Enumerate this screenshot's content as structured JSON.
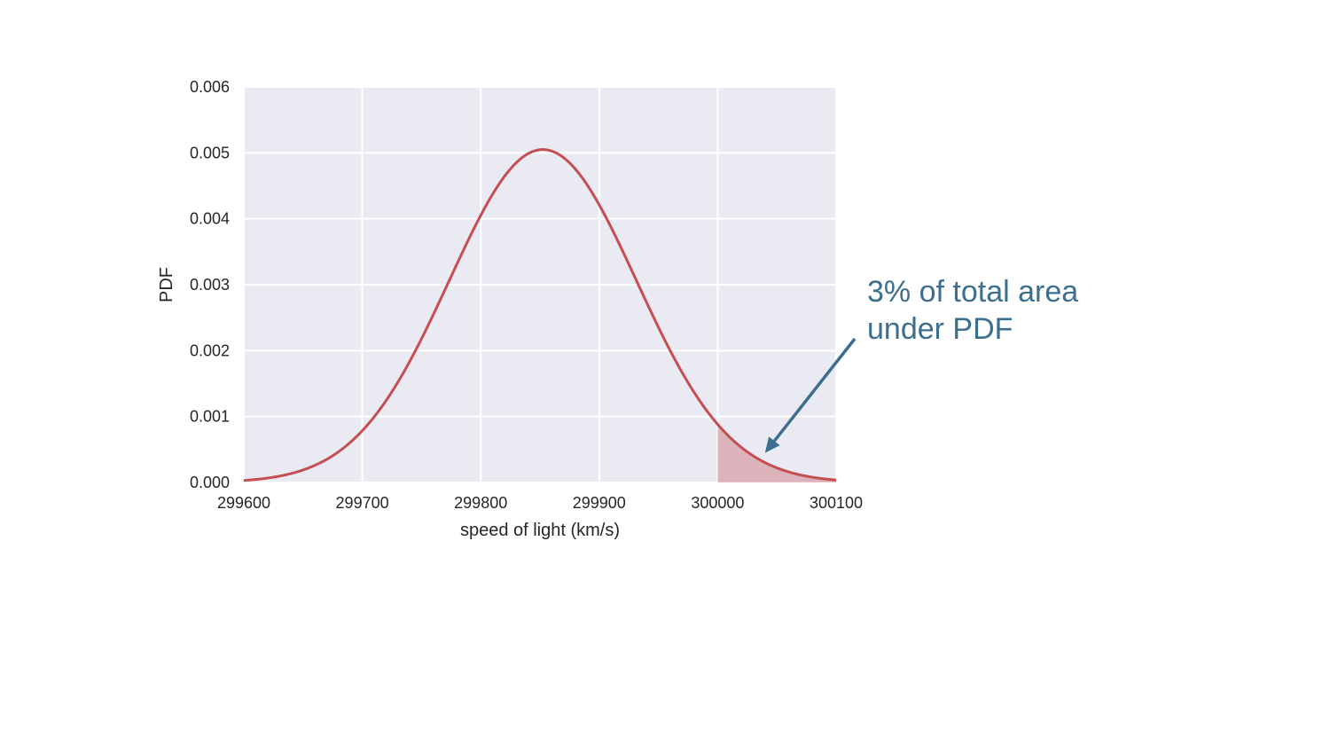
{
  "chart_data": {
    "type": "line",
    "title": "",
    "xlabel": "speed of light (km/s)",
    "ylabel": "PDF",
    "xlim": [
      299600,
      300100
    ],
    "ylim": [
      0,
      0.006
    ],
    "grid": true,
    "x_ticks": [
      299600,
      299700,
      299800,
      299900,
      300000,
      300100
    ],
    "x_tick_labels": [
      "299600",
      "299700",
      "299800",
      "299900",
      "300000",
      "300100"
    ],
    "y_ticks": [
      0,
      0.001,
      0.002,
      0.003,
      0.004,
      0.005,
      0.006
    ],
    "y_tick_labels": [
      "0.000",
      "0.001",
      "0.002",
      "0.003",
      "0.004",
      "0.005",
      "0.006"
    ],
    "series": [
      {
        "distribution": "normal",
        "mean": 299852.4,
        "std": 79.0,
        "color": "#c44e52"
      }
    ],
    "shaded_region": {
      "x_from": 300000,
      "x_to": 300100,
      "color": "#c44e52",
      "opacity": 0.35
    },
    "annotation": {
      "lines": [
        "3% of total area",
        "under PDF"
      ],
      "color": "#3b6e8f",
      "arrow_target": {
        "x": 300040,
        "y": 0.00045
      }
    },
    "colors": {
      "plot_background": "#eaeaf2",
      "grid": "#ffffff"
    }
  }
}
